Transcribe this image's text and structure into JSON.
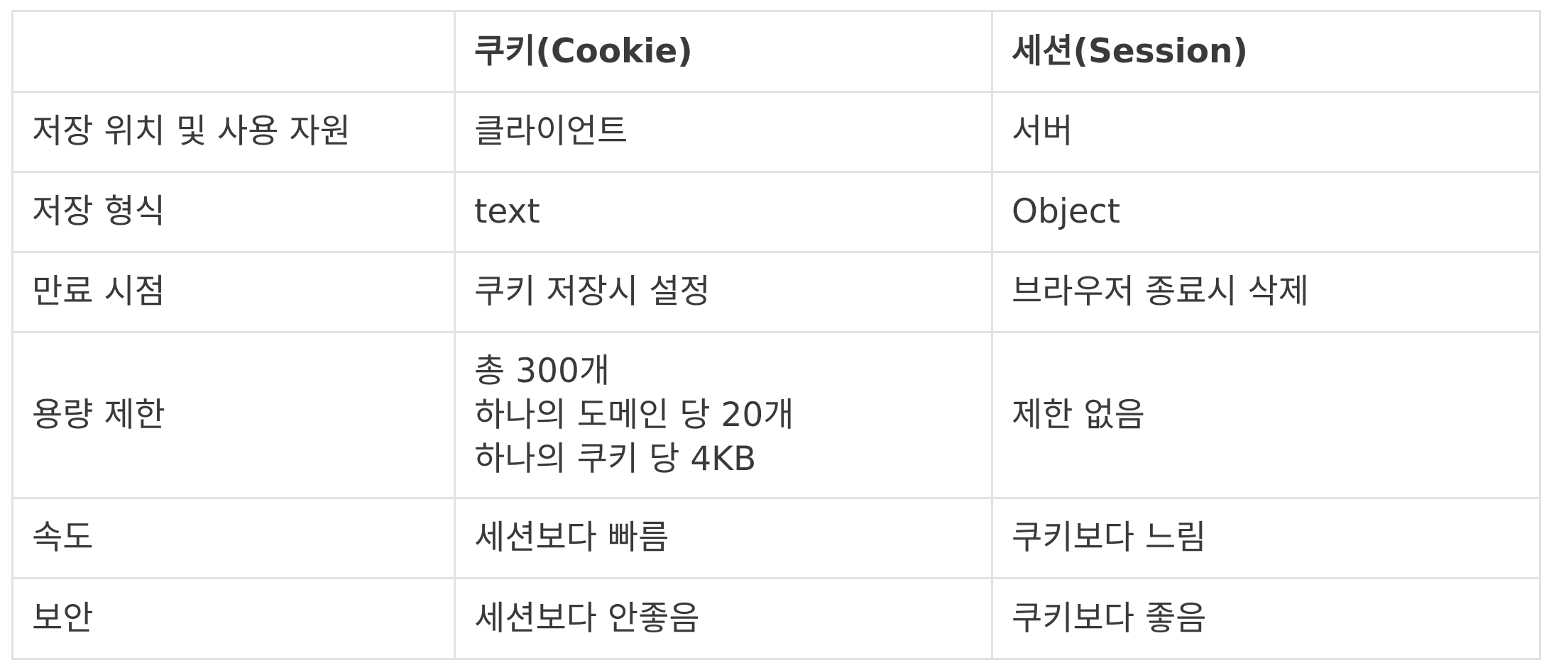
{
  "table": {
    "header": {
      "corner": "",
      "cookie": "쿠키(Cookie)",
      "session": "세션(Session)"
    },
    "rows": [
      {
        "label": "저장 위치 및 사용 자원",
        "cookie": "클라이언트",
        "session": "서버"
      },
      {
        "label": "저장 형식",
        "cookie": "text",
        "session": "Object"
      },
      {
        "label": "만료 시점",
        "cookie": "쿠키 저장시 설정",
        "session": "브라우저 종료시 삭제"
      },
      {
        "label": "용량 제한",
        "cookie_lines": [
          "총 300개",
          "하나의 도메인 당 20개",
          "하나의 쿠키 당 4KB"
        ],
        "session": "제한 없음"
      },
      {
        "label": "속도",
        "cookie": "세션보다 빠름",
        "session": "쿠키보다 느림"
      },
      {
        "label": "보안",
        "cookie": "세션보다 안좋음",
        "session": "쿠키보다 좋음"
      }
    ]
  },
  "colors": {
    "highlight": "#f08a1c",
    "text": "#3a3a3a",
    "border": "#e2e2e2"
  }
}
